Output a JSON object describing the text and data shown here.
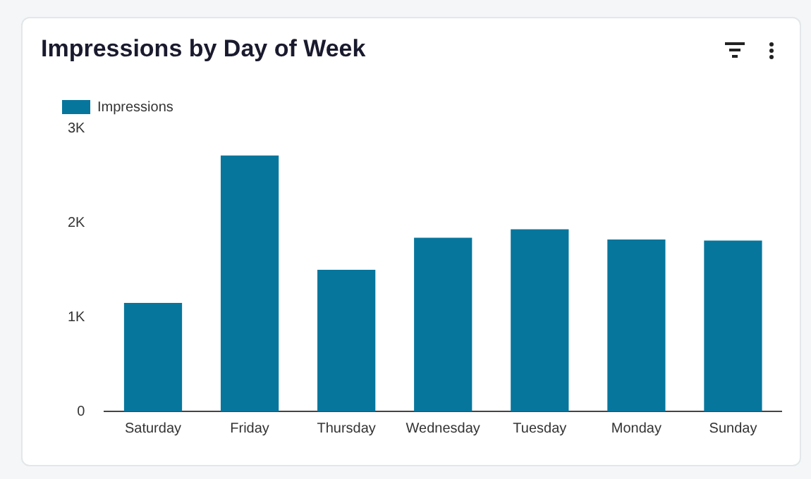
{
  "chart_data": {
    "type": "bar",
    "title": "Impressions by Day of Week",
    "categories": [
      "Saturday",
      "Friday",
      "Thursday",
      "Wednesday",
      "Tuesday",
      "Monday",
      "Sunday"
    ],
    "series": [
      {
        "name": "Impressions",
        "color": "#07769c",
        "values": [
          1150,
          2710,
          1500,
          1840,
          1930,
          1820,
          1810
        ]
      }
    ],
    "ylim": [
      0,
      3000
    ],
    "yticks": [
      0,
      {
        "value": 1000,
        "label": "1K"
      },
      {
        "value": 2000,
        "label": "2K"
      },
      {
        "value": 3000,
        "label": "3K"
      }
    ],
    "grid": false,
    "legend": "top left"
  }
}
